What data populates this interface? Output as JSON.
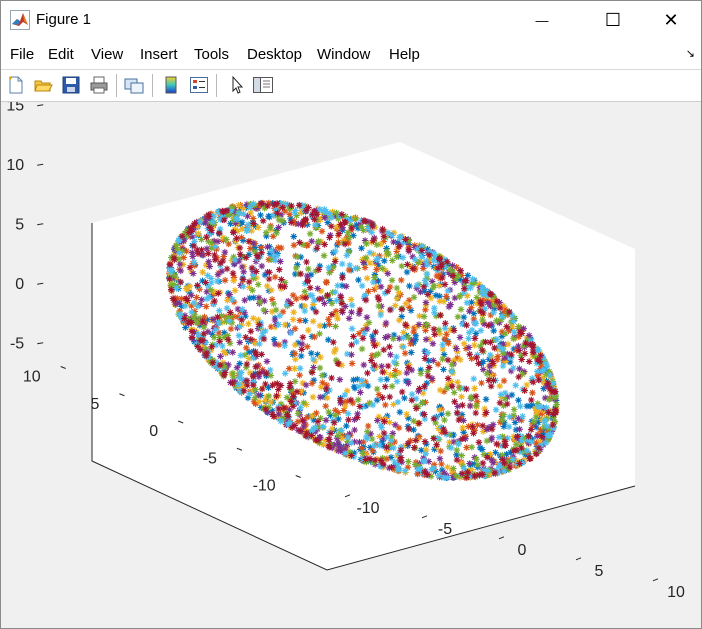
{
  "window": {
    "title": "Figure 1",
    "controls": {
      "minimize": "—",
      "maximize": "☐",
      "close": "✕"
    }
  },
  "menu": [
    "File",
    "Edit",
    "View",
    "Insert",
    "Tools",
    "Desktop",
    "Window",
    "Help"
  ],
  "toolbar": [
    "new-figure-icon",
    "open-file-icon",
    "save-icon",
    "print-icon",
    "link-plot-icon",
    "colorbar-icon",
    "legend-icon",
    "edit-plot-cursor-icon",
    "property-inspector-icon"
  ],
  "chart_data": {
    "type": "scatter",
    "dimensions": 3,
    "marker": "*",
    "description_visible": "dense 3D star markers forming a sphere, many colors",
    "colors": [
      "#0072bd",
      "#d95319",
      "#edb120",
      "#7e2f8e",
      "#77ac30",
      "#4dbeee",
      "#a2142f"
    ],
    "x_ticks": [
      "-10",
      "-5",
      "0",
      "5",
      "10"
    ],
    "y_ticks": [
      "-10",
      "-5",
      "0",
      "5",
      "10"
    ],
    "z_ticks": [
      "-5",
      "0",
      "5",
      "10",
      "15"
    ],
    "xlim": [
      -12,
      12
    ],
    "ylim": [
      -12,
      12
    ],
    "zlim": [
      -6,
      16
    ],
    "sphere": {
      "center": [
        0,
        0,
        5
      ],
      "radius": 10
    },
    "title": "",
    "xlabel": "",
    "ylabel": "",
    "zlabel": "",
    "grid": false
  }
}
